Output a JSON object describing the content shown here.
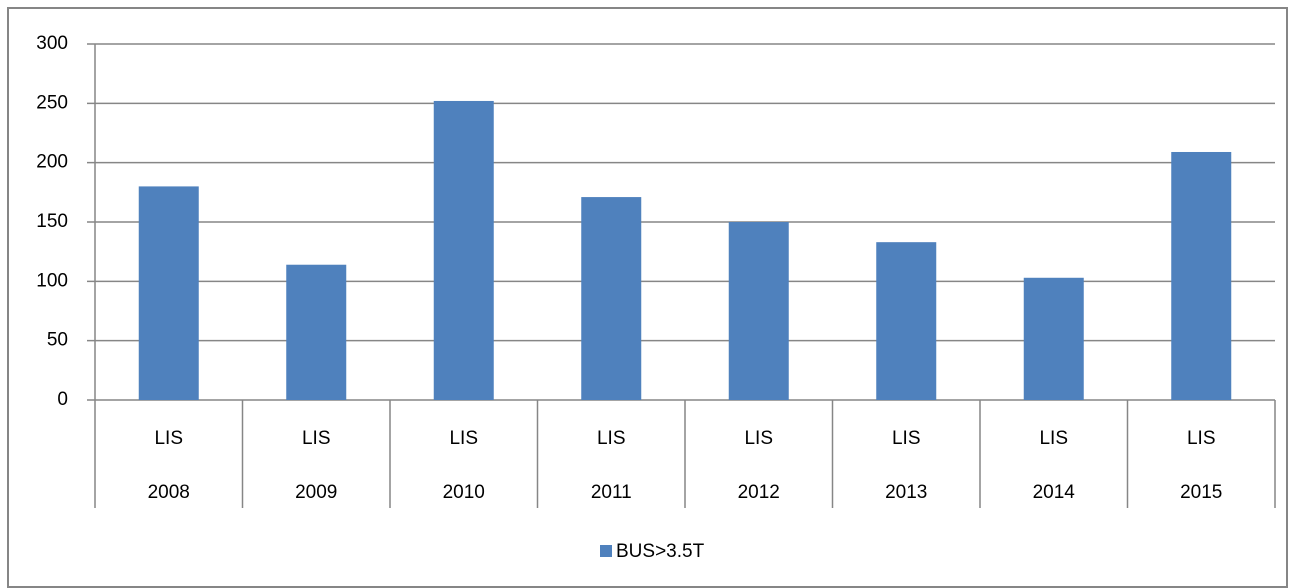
{
  "chart_data": {
    "type": "bar",
    "categories": [
      [
        "LIS",
        "2008"
      ],
      [
        "LIS",
        "2009"
      ],
      [
        "LIS",
        "2010"
      ],
      [
        "LIS",
        "2011"
      ],
      [
        "LIS",
        "2012"
      ],
      [
        "LIS",
        "2013"
      ],
      [
        "LIS",
        "2014"
      ],
      [
        "LIS",
        "2015"
      ]
    ],
    "series": [
      {
        "name": "BUS>3.5T",
        "color": "#4f81bd",
        "values": [
          180,
          114,
          252,
          171,
          150,
          133,
          103,
          209
        ]
      }
    ],
    "ylim": [
      0,
      300
    ],
    "yticks": [
      0,
      50,
      100,
      150,
      200,
      250,
      300
    ],
    "grid": true,
    "legend": "bottom"
  }
}
